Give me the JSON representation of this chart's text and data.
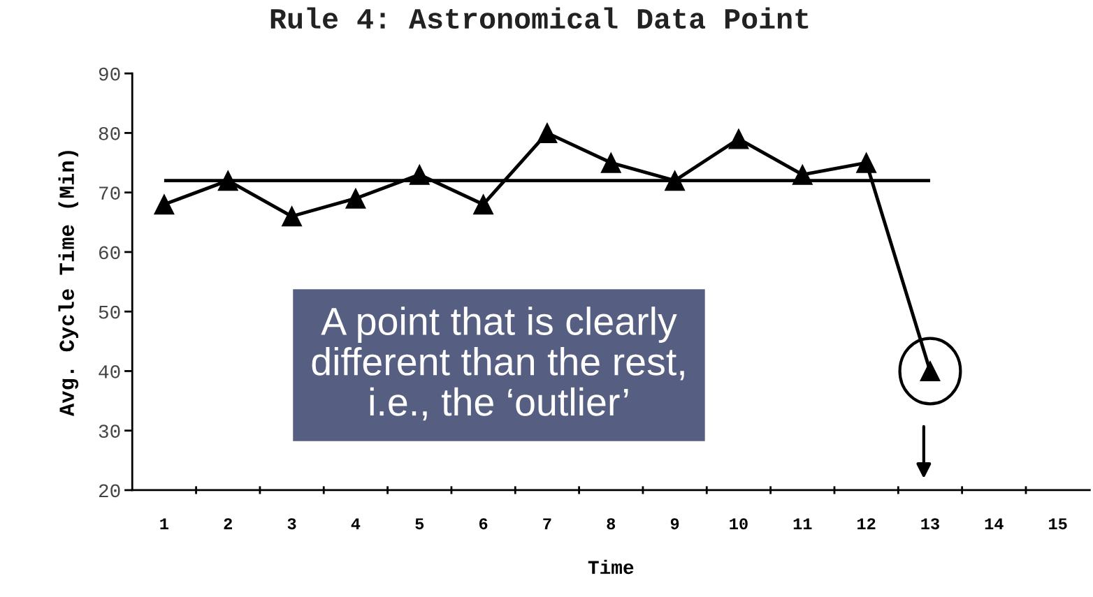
{
  "chart_data": {
    "type": "line",
    "title": "Rule 4: Astronomical Data Point",
    "xlabel": "Time",
    "ylabel": "Avg. Cycle Time (Min)",
    "categories": [
      "1",
      "2",
      "3",
      "4",
      "5",
      "6",
      "7",
      "8",
      "9",
      "10",
      "11",
      "12",
      "13",
      "14",
      "15"
    ],
    "series": [
      {
        "color": "#000000",
        "values": [
          68,
          72,
          66,
          69,
          73,
          68,
          80,
          75,
          72,
          79,
          73,
          75,
          40,
          null,
          null
        ]
      }
    ],
    "ylim": [
      20,
      90
    ],
    "yticks": [
      20,
      30,
      40,
      50,
      60,
      70,
      80,
      90
    ],
    "ref_lines": [
      {
        "axis": "y",
        "value": 72,
        "color": "#000000"
      }
    ],
    "annotations": [
      "A point that is clearly\ndifferent than the rest,\ni.e., the ‘outlier’"
    ],
    "marker": "triangle",
    "line_style": "solid",
    "grid": false,
    "legend": false
  }
}
